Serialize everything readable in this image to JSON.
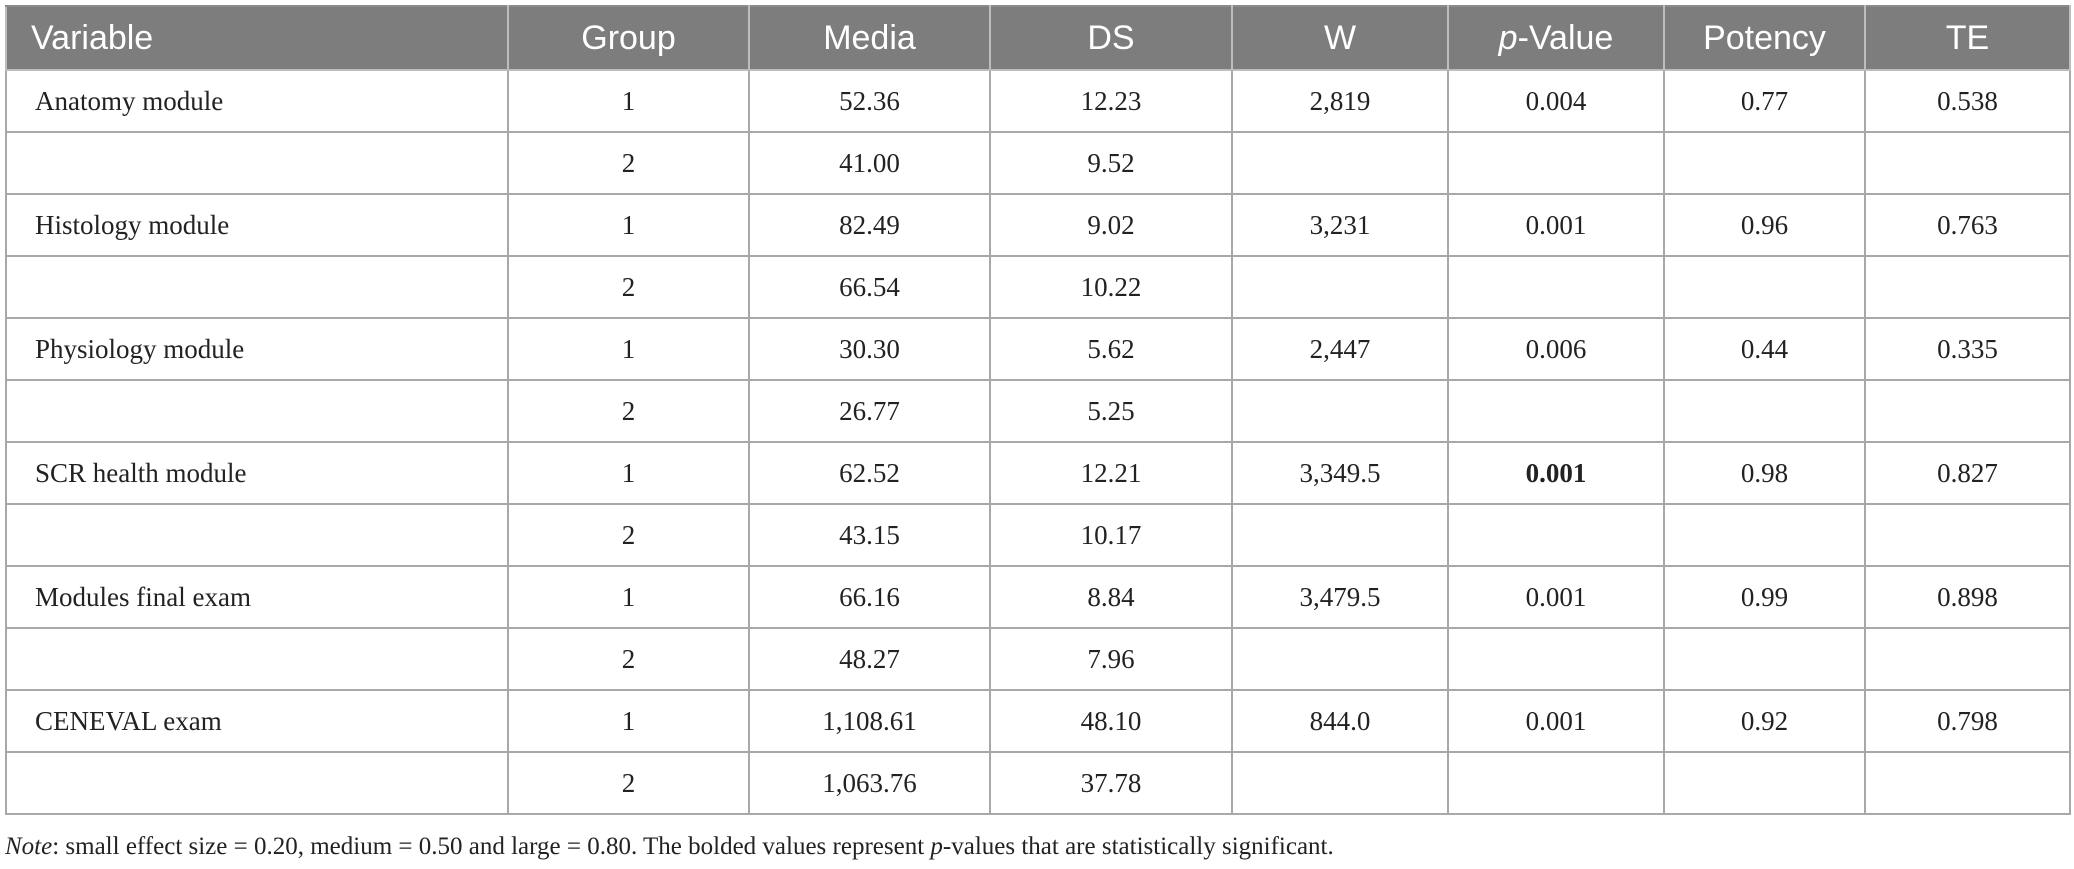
{
  "table": {
    "headers": {
      "variable": "Variable",
      "group": "Group",
      "media": "Media",
      "ds": "DS",
      "w": "W",
      "p_italic": "p",
      "p_rest": "-Value",
      "potency": "Potency",
      "te": "TE"
    },
    "rows": [
      {
        "variable": "Anatomy module",
        "group": "1",
        "media": "52.36",
        "ds": "12.23",
        "w": "2,819",
        "p": "0.004",
        "p_bold": false,
        "potency": "0.77",
        "te": "0.538"
      },
      {
        "variable": "",
        "group": "2",
        "media": "41.00",
        "ds": "9.52",
        "w": "",
        "p": "",
        "p_bold": false,
        "potency": "",
        "te": ""
      },
      {
        "variable": "Histology module",
        "group": "1",
        "media": "82.49",
        "ds": "9.02",
        "w": "3,231",
        "p": "0.001",
        "p_bold": false,
        "potency": "0.96",
        "te": "0.763"
      },
      {
        "variable": "",
        "group": "2",
        "media": "66.54",
        "ds": "10.22",
        "w": "",
        "p": "",
        "p_bold": false,
        "potency": "",
        "te": ""
      },
      {
        "variable": "Physiology module",
        "group": "1",
        "media": "30.30",
        "ds": "5.62",
        "w": "2,447",
        "p": "0.006",
        "p_bold": false,
        "potency": "0.44",
        "te": "0.335"
      },
      {
        "variable": "",
        "group": "2",
        "media": "26.77",
        "ds": "5.25",
        "w": "",
        "p": "",
        "p_bold": false,
        "potency": "",
        "te": ""
      },
      {
        "variable": "SCR health module",
        "group": "1",
        "media": "62.52",
        "ds": "12.21",
        "w": "3,349.5",
        "p": "0.001",
        "p_bold": true,
        "potency": "0.98",
        "te": "0.827"
      },
      {
        "variable": "",
        "group": "2",
        "media": "43.15",
        "ds": "10.17",
        "w": "",
        "p": "",
        "p_bold": false,
        "potency": "",
        "te": ""
      },
      {
        "variable": "Modules final exam",
        "group": "1",
        "media": "66.16",
        "ds": "8.84",
        "w": "3,479.5",
        "p": "0.001",
        "p_bold": false,
        "potency": "0.99",
        "te": "0.898"
      },
      {
        "variable": "",
        "group": "2",
        "media": "48.27",
        "ds": "7.96",
        "w": "",
        "p": "",
        "p_bold": false,
        "potency": "",
        "te": ""
      },
      {
        "variable": "CENEVAL exam",
        "group": "1",
        "media": "1,108.61",
        "ds": "48.10",
        "w": "844.0",
        "p": "0.001",
        "p_bold": false,
        "potency": "0.92",
        "te": "0.798"
      },
      {
        "variable": "",
        "group": "2",
        "media": "1,063.76",
        "ds": "37.78",
        "w": "",
        "p": "",
        "p_bold": false,
        "potency": "",
        "te": ""
      }
    ]
  },
  "note": {
    "label": "Note",
    "part1": ": small effect size = 0.20, medium = 0.50 and large =  0.80. The bolded values represent ",
    "p_italic": "p",
    "part2": "-values that are statistically significant."
  }
}
